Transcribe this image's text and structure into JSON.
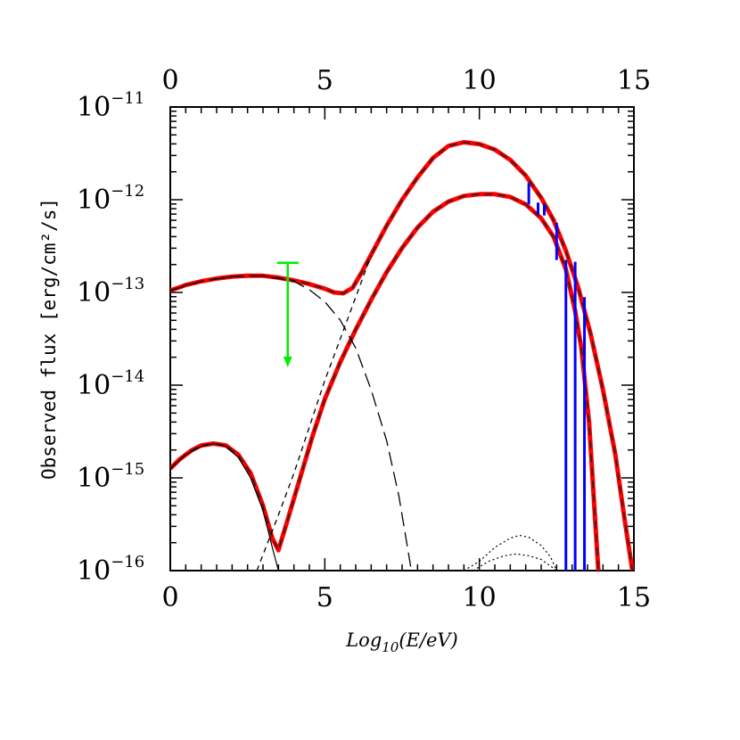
{
  "chart_data": {
    "type": "line",
    "ylabel": "Observed flux [erg/cm²/s]",
    "xlabel_parts": {
      "log": "Log",
      "sub": "10",
      "rest": "(E/eV)"
    },
    "x_ticks": [
      {
        "value": 0,
        "label": "0"
      },
      {
        "value": 5,
        "label": "5"
      },
      {
        "value": 10,
        "label": "10"
      },
      {
        "value": 15,
        "label": "15"
      }
    ],
    "y_ticks": [
      {
        "exp": -16,
        "base": "10",
        "sup": "−16"
      },
      {
        "exp": -15,
        "base": "10",
        "sup": "−15"
      },
      {
        "exp": -14,
        "base": "10",
        "sup": "−14"
      },
      {
        "exp": -13,
        "base": "10",
        "sup": "−13"
      },
      {
        "exp": -12,
        "base": "10",
        "sup": "−12"
      },
      {
        "exp": -11,
        "base": "10",
        "sup": "−11"
      }
    ],
    "xlim": [
      0,
      15
    ],
    "ylim_log10": [
      -16,
      -11
    ],
    "y_scale": "log",
    "colors": {
      "model": "#ff0000",
      "component": "#000000",
      "data": "#0000ff",
      "upper_limit": "#00ee00"
    },
    "series": [
      {
        "style": "total-red",
        "points": [
          [
            0,
            -12.98
          ],
          [
            0.5,
            -12.92
          ],
          [
            1,
            -12.88
          ],
          [
            1.5,
            -12.85
          ],
          [
            2,
            -12.83
          ],
          [
            2.5,
            -12.82
          ],
          [
            3,
            -12.82
          ],
          [
            3.5,
            -12.84
          ],
          [
            4,
            -12.87
          ],
          [
            4.5,
            -12.91
          ],
          [
            5,
            -12.96
          ],
          [
            5.3,
            -13.0
          ],
          [
            5.6,
            -13.01
          ],
          [
            5.9,
            -12.95
          ],
          [
            6.2,
            -12.78
          ],
          [
            6.6,
            -12.53
          ],
          [
            7,
            -12.28
          ],
          [
            7.5,
            -12.0
          ],
          [
            8,
            -11.76
          ],
          [
            8.5,
            -11.55
          ],
          [
            9,
            -11.42
          ],
          [
            9.5,
            -11.38
          ],
          [
            10,
            -11.4
          ],
          [
            10.5,
            -11.46
          ],
          [
            11,
            -11.57
          ],
          [
            11.5,
            -11.74
          ],
          [
            12,
            -11.98
          ],
          [
            12.4,
            -12.22
          ],
          [
            12.8,
            -12.55
          ],
          [
            13.2,
            -12.95
          ],
          [
            13.6,
            -13.45
          ],
          [
            14,
            -14.05
          ],
          [
            14.4,
            -14.75
          ],
          [
            14.7,
            -15.45
          ],
          [
            14.95,
            -16.0
          ]
        ]
      },
      {
        "style": "total-red",
        "points": [
          [
            0,
            -14.9
          ],
          [
            0.3,
            -14.8
          ],
          [
            0.7,
            -14.7
          ],
          [
            1,
            -14.65
          ],
          [
            1.4,
            -14.63
          ],
          [
            1.8,
            -14.65
          ],
          [
            2.2,
            -14.75
          ],
          [
            2.6,
            -14.95
          ],
          [
            3,
            -15.3
          ],
          [
            3.3,
            -15.65
          ],
          [
            3.5,
            -15.78
          ],
          [
            3.8,
            -15.45
          ],
          [
            4.2,
            -15.0
          ],
          [
            4.6,
            -14.55
          ],
          [
            5,
            -14.15
          ],
          [
            5.5,
            -13.75
          ],
          [
            6,
            -13.4
          ],
          [
            6.5,
            -13.08
          ],
          [
            7,
            -12.78
          ],
          [
            7.5,
            -12.52
          ],
          [
            8,
            -12.3
          ],
          [
            8.5,
            -12.13
          ],
          [
            9,
            -12.02
          ],
          [
            9.5,
            -11.96
          ],
          [
            10,
            -11.94
          ],
          [
            10.5,
            -11.94
          ],
          [
            11,
            -11.97
          ],
          [
            11.5,
            -12.05
          ],
          [
            12,
            -12.2
          ],
          [
            12.4,
            -12.4
          ],
          [
            12.8,
            -12.75
          ],
          [
            13.1,
            -13.2
          ],
          [
            13.3,
            -13.6
          ],
          [
            13.55,
            -14.4
          ],
          [
            13.7,
            -15.2
          ],
          [
            13.85,
            -16.0
          ]
        ]
      },
      {
        "style": "sync-longdash",
        "points": [
          [
            0,
            -12.98
          ],
          [
            1,
            -12.88
          ],
          [
            2,
            -12.83
          ],
          [
            3,
            -12.82
          ],
          [
            4,
            -12.88
          ],
          [
            4.5,
            -12.97
          ],
          [
            5,
            -13.1
          ],
          [
            5.5,
            -13.3
          ],
          [
            6,
            -13.6
          ],
          [
            6.5,
            -14.05
          ],
          [
            7,
            -14.6
          ],
          [
            7.4,
            -15.2
          ],
          [
            7.8,
            -16.0
          ]
        ]
      },
      {
        "style": "ic-shortdash",
        "points": [
          [
            2.8,
            -16.0
          ],
          [
            3.5,
            -15.4
          ],
          [
            4,
            -14.95
          ],
          [
            4.5,
            -14.45
          ],
          [
            5,
            -13.95
          ],
          [
            5.5,
            -13.5
          ],
          [
            6,
            -13.05
          ],
          [
            6.5,
            -12.6
          ]
        ]
      },
      {
        "style": "lowsync-thin",
        "points": [
          [
            0,
            -14.9
          ],
          [
            0.5,
            -14.75
          ],
          [
            1,
            -14.66
          ],
          [
            1.4,
            -14.63
          ],
          [
            1.8,
            -14.66
          ],
          [
            2.2,
            -14.78
          ],
          [
            2.6,
            -15.0
          ],
          [
            3,
            -15.35
          ],
          [
            3.3,
            -15.75
          ],
          [
            3.5,
            -16.0
          ]
        ]
      },
      {
        "style": "dotted",
        "points": [
          [
            9.5,
            -16.0
          ],
          [
            10,
            -15.9
          ],
          [
            10.5,
            -15.75
          ],
          [
            11,
            -15.65
          ],
          [
            11.3,
            -15.62
          ],
          [
            11.6,
            -15.64
          ],
          [
            12,
            -15.73
          ],
          [
            12.3,
            -15.85
          ],
          [
            12.5,
            -16.0
          ]
        ]
      },
      {
        "style": "dotted",
        "points": [
          [
            9.8,
            -16.0
          ],
          [
            10.3,
            -15.9
          ],
          [
            10.8,
            -15.84
          ],
          [
            11.2,
            -15.82
          ],
          [
            11.6,
            -15.84
          ],
          [
            12,
            -15.88
          ],
          [
            12.3,
            -15.95
          ],
          [
            12.5,
            -16.0
          ]
        ]
      }
    ],
    "data_points": [
      {
        "x": 11.6,
        "y_top": -11.82,
        "y_bottom": -12.05
      },
      {
        "x": 11.9,
        "y_top": -12.03,
        "y_bottom": -12.16
      },
      {
        "x": 12.1,
        "y_top": -12.05,
        "y_bottom": -12.17
      },
      {
        "x": 12.5,
        "y_top": -12.25,
        "y_bottom": -12.65
      },
      {
        "x": 12.8,
        "y_top": -12.65,
        "y_bottom": -16.0
      },
      {
        "x": 13.1,
        "y_top": -12.67,
        "y_bottom": -16.0
      },
      {
        "x": 13.4,
        "y_top": -13.05,
        "y_bottom": -16.0
      }
    ],
    "upper_limit": {
      "x": 3.8,
      "x_halfwidth": 0.35,
      "y": -12.68,
      "y_arrow_end": -13.73
    }
  }
}
